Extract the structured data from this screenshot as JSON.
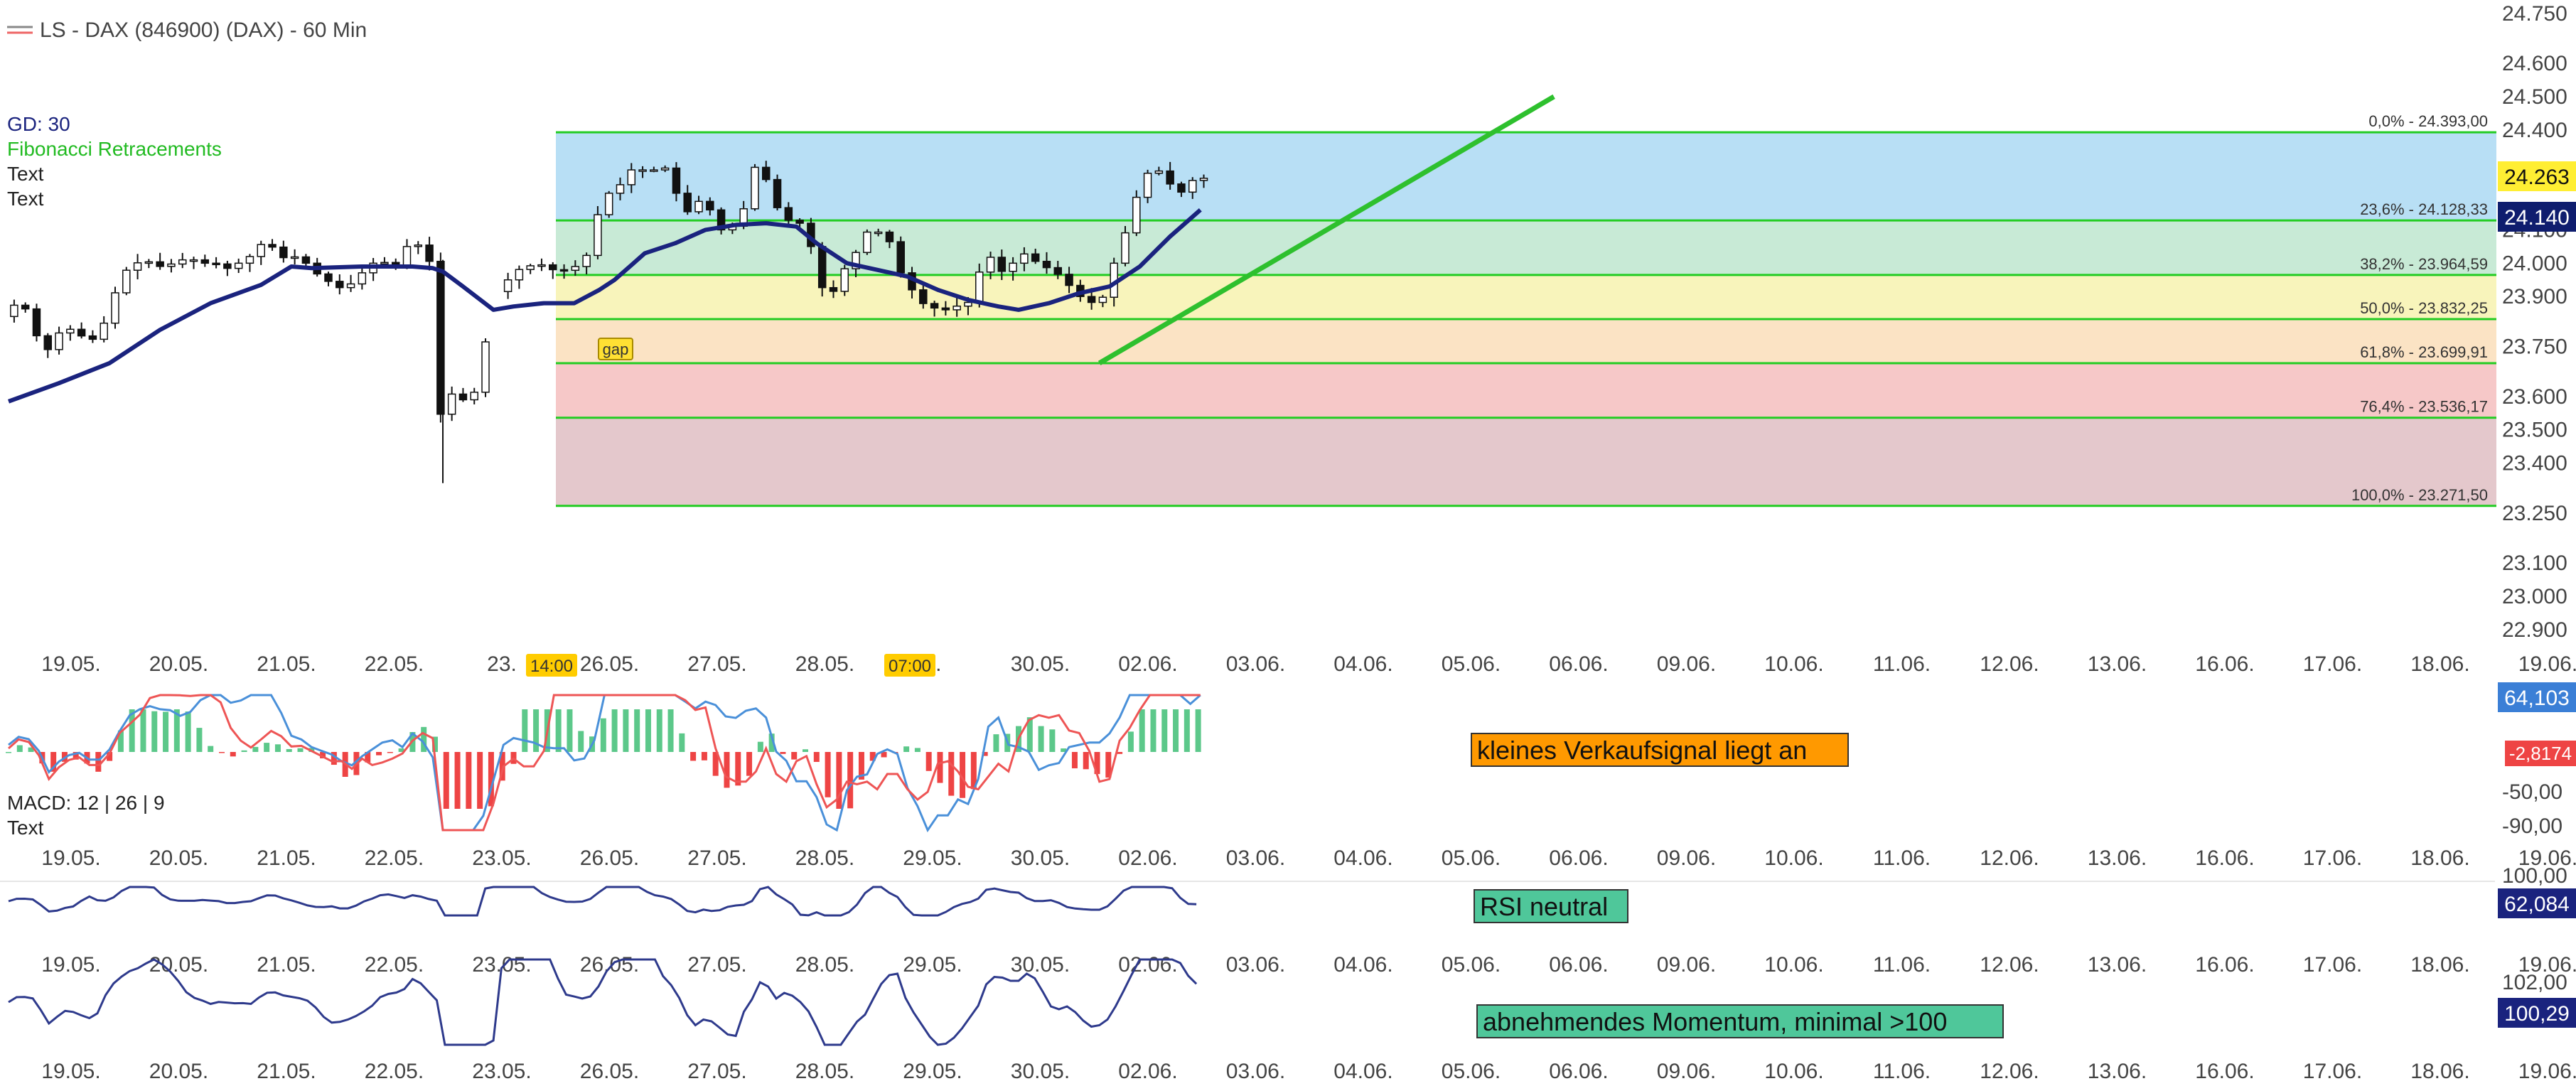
{
  "header": {
    "title": "LS - DAX (846900) (DAX) - 60 Min",
    "legend": [
      {
        "label": "GD: 30",
        "color": "#1a237e"
      },
      {
        "label": "Fibonacci Retracements",
        "color": "#22bb22"
      },
      {
        "label": "Text",
        "color": "#222222"
      },
      {
        "label": "Text",
        "color": "#222222"
      }
    ]
  },
  "colors": {
    "candle_body": "#111111",
    "ma_line": "#1a237e",
    "fib_line": "#22cc22",
    "trend_line": "#2ec02e",
    "macd_pos": "#5cc88a",
    "macd_neg": "#ee4444",
    "macd_line": "#4a90d9",
    "signal_line": "#ee5555",
    "osc_line": "#2e3a8c",
    "ytick_highlight_price": "#ffee33",
    "ytick_highlight_ma": "#0f1d6e"
  },
  "chart_data": [
    {
      "type": "candlestick",
      "title": "LS - DAX (846900) (DAX) - 60 Min",
      "x_tick_labels": [
        "19.05.",
        "20.05.",
        "21.05.",
        "22.05.",
        "23.05.",
        "26.05.",
        "27.05.",
        "28.05.",
        "29.05.",
        "30.05.",
        "02.06.",
        "03.06.",
        "04.06.",
        "05.06.",
        "06.06.",
        "09.06.",
        "10.06.",
        "11.06.",
        "12.06.",
        "13.06.",
        "16.06.",
        "17.06.",
        "18.06.",
        "19.06."
      ],
      "x_tick_labels_main": [
        "19.05.",
        "20.05.",
        "21.05.",
        "22.05.",
        "23.",
        "26.05.",
        "27.05.",
        "28.05.",
        "5.",
        "30.05.",
        "02.06.",
        "03.06.",
        "04.06.",
        "05.06.",
        "06.06.",
        "09.06.",
        "10.06.",
        "11.06.",
        "12.06.",
        "13.06.",
        "16.06.",
        "17.06.",
        "18.06.",
        "19.06."
      ],
      "x_markers": [
        {
          "label": "14:00",
          "day_index": 4.3
        },
        {
          "label": "07:00",
          "day_index": 7.85
        }
      ],
      "y_tick_labels": [
        "24.750",
        "24.600",
        "24.500",
        "24.400",
        "24.100",
        "24.000",
        "23.900",
        "23.750",
        "23.600",
        "23.500",
        "23.400",
        "23.250",
        "23.100",
        "23.000",
        "22.900"
      ],
      "ylim": [
        22870,
        24790
      ],
      "price_path": [
        [
          0.0,
          23840
        ],
        [
          0.1,
          23875
        ],
        [
          0.25,
          23860
        ],
        [
          0.4,
          23720
        ],
        [
          0.55,
          23790
        ],
        [
          0.7,
          23805
        ],
        [
          0.85,
          23760
        ],
        [
          0.95,
          23790
        ],
        [
          1.05,
          23850
        ],
        [
          1.15,
          23950
        ],
        [
          1.25,
          23990
        ],
        [
          1.4,
          24010
        ],
        [
          1.55,
          23990
        ],
        [
          1.65,
          23995
        ],
        [
          1.75,
          24010
        ],
        [
          1.9,
          24010
        ],
        [
          2.0,
          24000
        ],
        [
          2.1,
          24000
        ],
        [
          2.2,
          23980
        ],
        [
          2.3,
          24000
        ],
        [
          2.4,
          24000
        ],
        [
          2.5,
          24045
        ],
        [
          2.6,
          24065
        ],
        [
          2.7,
          24040
        ],
        [
          2.8,
          24010
        ],
        [
          2.9,
          24020
        ],
        [
          3.0,
          24000
        ],
        [
          3.1,
          23970
        ],
        [
          3.2,
          23950
        ],
        [
          3.3,
          23930
        ],
        [
          3.4,
          23920
        ],
        [
          3.5,
          23960
        ],
        [
          3.6,
          23980
        ],
        [
          3.7,
          24010
        ],
        [
          3.8,
          24000
        ],
        [
          3.9,
          23990
        ],
        [
          4.0,
          24050
        ],
        [
          4.1,
          24060
        ],
        [
          4.2,
          24010
        ],
        [
          4.25,
          24000
        ],
        [
          4.3,
          23520
        ],
        [
          4.35,
          23560
        ],
        [
          4.45,
          23610
        ],
        [
          4.55,
          23590
        ],
        [
          4.65,
          23590
        ],
        [
          4.9,
          23930
        ],
        [
          5.0,
          23950
        ],
        [
          5.1,
          23980
        ],
        [
          5.2,
          23990
        ],
        [
          5.3,
          24000
        ],
        [
          5.4,
          23985
        ],
        [
          5.5,
          23975
        ],
        [
          5.65,
          23985
        ],
        [
          5.8,
          24030
        ],
        [
          5.9,
          24160
        ],
        [
          6.0,
          24210
        ],
        [
          6.1,
          24230
        ],
        [
          6.2,
          24280
        ],
        [
          6.35,
          24280
        ],
        [
          6.5,
          24280
        ],
        [
          6.6,
          24290
        ],
        [
          6.7,
          24170
        ],
        [
          6.8,
          24150
        ],
        [
          6.9,
          24190
        ],
        [
          7.0,
          24160
        ],
        [
          7.1,
          24100
        ],
        [
          7.2,
          24100
        ],
        [
          7.3,
          24150
        ],
        [
          7.4,
          24190
        ],
        [
          7.45,
          24300
        ],
        [
          7.55,
          24260
        ],
        [
          7.6,
          24180
        ],
        [
          7.7,
          24160
        ],
        [
          7.8,
          24120
        ],
        [
          7.9,
          24120
        ],
        [
          8.0,
          24050
        ],
        [
          8.1,
          23930
        ],
        [
          8.2,
          23900
        ],
        [
          8.3,
          23970
        ],
        [
          8.4,
          24010
        ],
        [
          8.5,
          24060
        ],
        [
          8.6,
          24120
        ],
        [
          8.7,
          24080
        ],
        [
          8.8,
          24060
        ],
        [
          8.9,
          23960
        ],
        [
          9.0,
          23920
        ],
        [
          9.1,
          23880
        ],
        [
          9.2,
          23870
        ],
        [
          9.3,
          23850
        ],
        [
          9.4,
          23880
        ],
        [
          9.5,
          23860
        ],
        [
          9.6,
          23900
        ],
        [
          9.7,
          24010
        ],
        [
          9.8,
          24020
        ],
        [
          9.9,
          23970
        ],
        [
          10.0,
          24000
        ],
        [
          10.1,
          24030
        ],
        [
          10.2,
          24010
        ],
        [
          10.3,
          23990
        ],
        [
          10.4,
          23980
        ],
        [
          10.5,
          23950
        ],
        [
          10.6,
          23920
        ],
        [
          10.7,
          23890
        ],
        [
          10.8,
          23880
        ],
        [
          10.9,
          23900
        ],
        [
          11.0,
          24000
        ],
        [
          11.1,
          24080
        ],
        [
          11.2,
          24180
        ],
        [
          11.3,
          24260
        ],
        [
          11.4,
          24290
        ],
        [
          11.5,
          24260
        ],
        [
          11.6,
          24220
        ],
        [
          11.7,
          24210
        ],
        [
          11.75,
          24240
        ],
        [
          11.8,
          24255
        ]
      ],
      "series": [
        {
          "name": "GD: 30",
          "x": [
            0.0,
            0.5,
            1.0,
            1.5,
            2.0,
            2.5,
            2.8,
            3.0,
            3.5,
            4.0,
            4.2,
            4.3,
            4.5,
            4.8,
            5.0,
            5.3,
            5.6,
            5.85,
            6.0,
            6.3,
            6.6,
            6.9,
            7.2,
            7.5,
            7.8,
            8.0,
            8.3,
            8.6,
            8.9,
            9.2,
            9.5,
            9.8,
            10.0,
            10.3,
            10.6,
            10.9,
            11.2,
            11.5,
            11.8
          ],
          "values": [
            23585,
            23640,
            23700,
            23800,
            23880,
            23935,
            23990,
            23985,
            23990,
            23990,
            23985,
            23975,
            23930,
            23860,
            23870,
            23880,
            23880,
            23920,
            23950,
            24030,
            24060,
            24100,
            24115,
            24120,
            24110,
            24060,
            24000,
            23980,
            23960,
            23920,
            23890,
            23870,
            23860,
            23880,
            23910,
            23930,
            23990,
            24080,
            24160
          ]
        }
      ],
      "fibonacci_levels": [
        {
          "label": "0,0% - 24.393,00",
          "value": 24393.0,
          "fill": "#b8dff5"
        },
        {
          "label": "23,6% - 24.128,33",
          "value": 24128.33,
          "fill": "#c8ead6"
        },
        {
          "label": "38,2% - 23.964,59",
          "value": 23964.59,
          "fill": "#f8f4bb"
        },
        {
          "label": "50,0% - 23.832,25",
          "value": 23832.25,
          "fill": "#fbe3c4"
        },
        {
          "label": "61,8% - 23.699,91",
          "value": 23699.91,
          "fill": "#f6c8c8"
        },
        {
          "label": "76,4% - 23.536,17",
          "value": 23536.17,
          "fill": "#e4c8cc"
        },
        {
          "label": "100,0% - 23.271,50",
          "value": 23271.5,
          "fill": ""
        }
      ],
      "trend_line": {
        "start": [
          10.8,
          23700
        ],
        "end": [
          15.3,
          24500
        ]
      },
      "annotations": [
        {
          "label": "gap",
          "day_index": 4.55,
          "value": 23810
        }
      ],
      "price_labels": [
        {
          "label": "24.263",
          "value": 24263,
          "style": "price"
        },
        {
          "label": "24.140",
          "value": 24140,
          "style": "ma"
        }
      ]
    },
    {
      "type": "line",
      "title": "MACD: 12 | 26 | 9",
      "subtitle": "Text",
      "annotation": "kleines Verkaufsignal liegt an",
      "y_tick_labels": [
        "-50,00",
        "-90,00"
      ],
      "value_labels": [
        "64,103",
        "-2,8174"
      ],
      "ylim": [
        -100,
        100
      ]
    },
    {
      "type": "line",
      "title": "RSI",
      "annotation": "RSI neutral",
      "y_tick_labels": [
        "100,00"
      ],
      "value_labels": [
        "62,084"
      ]
    },
    {
      "type": "line",
      "title": "Momentum",
      "annotation": "abnehmendes Momentum, minimal >100",
      "y_tick_labels": [
        "102,00"
      ],
      "value_labels": [
        "100,29"
      ]
    }
  ]
}
